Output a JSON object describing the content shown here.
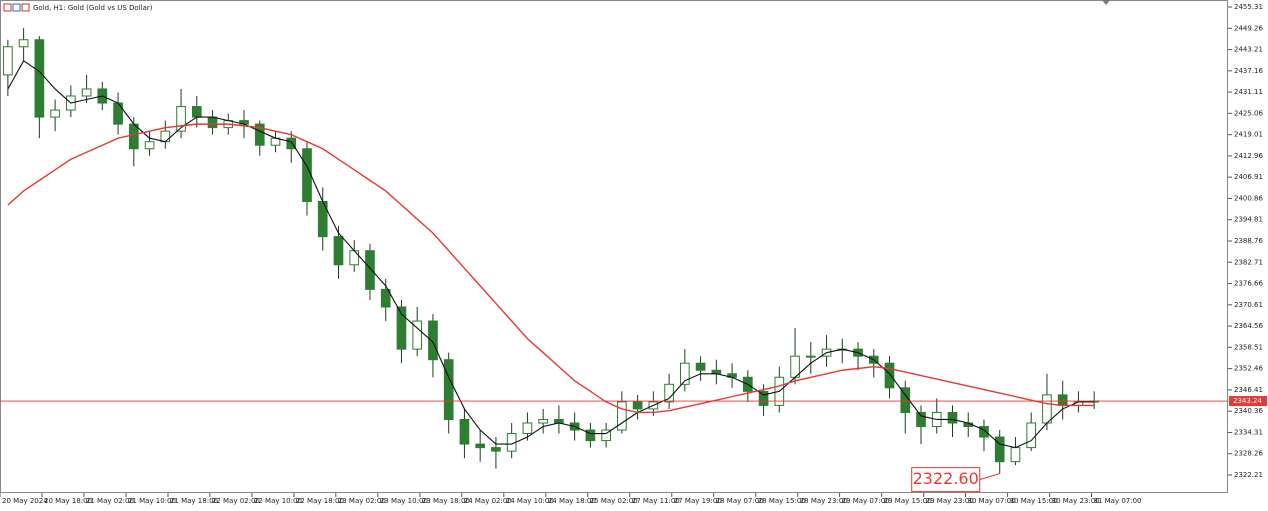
{
  "chart_data": {
    "type": "candlestick",
    "title": "Gold, H1: Gold (Gold vs US Dollar)",
    "xlim": [
      0,
      78
    ],
    "ylim": [
      2317.09,
      2457.3
    ],
    "yticks": [
      2455.31,
      2449.26,
      2443.21,
      2437.16,
      2431.11,
      2425.06,
      2419.01,
      2412.96,
      2406.91,
      2400.86,
      2394.81,
      2388.76,
      2382.71,
      2376.66,
      2370.61,
      2364.56,
      2358.51,
      2352.46,
      2346.41,
      2340.36,
      2334.31,
      2328.26,
      2322.21
    ],
    "xticks": [
      {
        "value": 0,
        "label": "20 May 2024"
      },
      {
        "value": 2.67,
        "label": "20 May 18:00"
      },
      {
        "value": 5.33,
        "label": "21 May 02:00"
      },
      {
        "value": 8,
        "label": "21 May 10:00"
      },
      {
        "value": 10.67,
        "label": "21 May 18:00"
      },
      {
        "value": 13.33,
        "label": "22 May 02:00"
      },
      {
        "value": 16,
        "label": "22 May 10:00"
      },
      {
        "value": 18.67,
        "label": "22 May 18:00"
      },
      {
        "value": 21.33,
        "label": "23 May 02:00"
      },
      {
        "value": 24,
        "label": "23 May 10:00"
      },
      {
        "value": 26.67,
        "label": "23 May 18:00"
      },
      {
        "value": 29.33,
        "label": "24 May 02:00"
      },
      {
        "value": 32,
        "label": "24 May 10:00"
      },
      {
        "value": 34.67,
        "label": "24 May 18:00"
      },
      {
        "value": 37.33,
        "label": "25 May 02:00"
      },
      {
        "value": 40,
        "label": "27 May 11:00"
      },
      {
        "value": 42.67,
        "label": "27 May 19:00"
      },
      {
        "value": 45.33,
        "label": "28 May 07:00"
      },
      {
        "value": 48,
        "label": "28 May 15:00"
      },
      {
        "value": 50.67,
        "label": "28 May 23:00"
      },
      {
        "value": 53.33,
        "label": "29 May 07:00"
      },
      {
        "value": 56,
        "label": "29 May 15:00"
      },
      {
        "value": 58.67,
        "label": "29 May 23:00"
      },
      {
        "value": 61.33,
        "label": "30 May 07:00"
      },
      {
        "value": 64,
        "label": "30 May 15:00"
      },
      {
        "value": 66.67,
        "label": "30 May 23:00"
      },
      {
        "value": 69.33,
        "label": "31 May 07:00"
      }
    ],
    "candle_color": "#2e7d32",
    "wick_color": "#1a3d1c",
    "open": [
      2436,
      2444,
      2446,
      2424,
      2426,
      2430,
      2432,
      2428,
      2422,
      2415,
      2417,
      2420,
      2427,
      2424,
      2421,
      2423,
      2422,
      2416,
      2418,
      2415,
      2400,
      2390,
      2382,
      2386,
      2375,
      2370,
      2358,
      2366,
      2355,
      2338,
      2331,
      2330,
      2329,
      2334,
      2337,
      2338,
      2337,
      2335,
      2332,
      2335,
      2343,
      2341,
      2343,
      2348,
      2354,
      2352,
      2351,
      2350,
      2346,
      2342,
      2350,
      2356,
      2356,
      2358,
      2358,
      2356,
      2354,
      2347,
      2340,
      2336,
      2340,
      2337,
      2336,
      2333,
      2326,
      2330,
      2337,
      2345,
      2342,
      2343
    ],
    "high": [
      2446,
      2449.3,
      2447,
      2429,
      2433,
      2436,
      2434,
      2431,
      2424,
      2420,
      2423,
      2432,
      2430,
      2426,
      2425,
      2426,
      2423,
      2420,
      2420,
      2417,
      2404,
      2393,
      2389,
      2388,
      2378,
      2372,
      2370,
      2368,
      2357,
      2341,
      2335,
      2333,
      2337,
      2340,
      2341,
      2342,
      2340,
      2337,
      2337,
      2346,
      2345,
      2346,
      2351,
      2358,
      2356,
      2355,
      2354,
      2352,
      2348,
      2353,
      2364,
      2360,
      2362,
      2361,
      2360,
      2358,
      2356,
      2349,
      2342,
      2344,
      2342,
      2340,
      2338,
      2335,
      2333,
      2340,
      2351,
      2349,
      2346,
      2346
    ],
    "low": [
      2430,
      2440,
      2418,
      2420,
      2424,
      2428,
      2426,
      2419,
      2410,
      2413,
      2415,
      2418,
      2421,
      2419,
      2419,
      2418,
      2413,
      2414,
      2411,
      2396,
      2386,
      2378,
      2380,
      2372,
      2366,
      2354,
      2356,
      2350,
      2334,
      2327,
      2326,
      2324,
      2327,
      2332,
      2334,
      2334,
      2332,
      2330,
      2330,
      2334,
      2338,
      2339,
      2341,
      2346,
      2349,
      2348,
      2347,
      2343,
      2339,
      2340,
      2348,
      2351,
      2353,
      2354,
      2352,
      2350,
      2344,
      2334,
      2331,
      2334,
      2333,
      2333,
      2329,
      2322.6,
      2325,
      2329,
      2335,
      2338,
      2340,
      2341
    ],
    "close": [
      2444,
      2446,
      2424,
      2426,
      2430,
      2432,
      2428,
      2422,
      2415,
      2417,
      2420,
      2427,
      2424,
      2421,
      2423,
      2422,
      2416,
      2418,
      2415,
      2400,
      2390,
      2382,
      2386,
      2375,
      2370,
      2358,
      2366,
      2355,
      2338,
      2331,
      2330,
      2329,
      2334,
      2337,
      2338,
      2337,
      2335,
      2332,
      2335,
      2343,
      2341,
      2343,
      2348,
      2354,
      2352,
      2351,
      2350,
      2346,
      2342,
      2350,
      2356,
      2356,
      2358,
      2358,
      2356,
      2354,
      2347,
      2340,
      2336,
      2340,
      2337,
      2336,
      2333,
      2326,
      2330,
      2337,
      2345,
      2342,
      2343,
      2343.24
    ],
    "series": [
      {
        "color": "#111111",
        "values": [
          2432,
          2440,
          2437,
          2432,
          2428,
          2429,
          2430,
          2428,
          2422,
          2418,
          2417,
          2421,
          2424,
          2424,
          2423,
          2422,
          2420,
          2418,
          2417,
          2410,
          2400,
          2391,
          2386,
          2381,
          2376,
          2368,
          2364,
          2360,
          2350,
          2341,
          2335,
          2331,
          2331,
          2333,
          2336,
          2337,
          2336,
          2334,
          2334,
          2337,
          2340,
          2342,
          2344,
          2349,
          2351,
          2351,
          2350,
          2348,
          2345,
          2346,
          2350,
          2354,
          2357,
          2358,
          2357,
          2355,
          2351,
          2345,
          2339,
          2338,
          2338,
          2337,
          2335,
          2331,
          2330,
          2332,
          2337,
          2341,
          2343,
          2343
        ]
      },
      {
        "color": "#e53935",
        "values": [
          2399,
          2403,
          2406,
          2409,
          2412,
          2414,
          2416,
          2418,
          2419,
          2420,
          2421,
          2421.5,
          2422,
          2422,
          2422,
          2421.5,
          2421,
          2420,
          2419,
          2417,
          2415,
          2412,
          2409,
          2406,
          2403,
          2399,
          2395,
          2391,
          2386,
          2381,
          2376,
          2371,
          2366,
          2361,
          2357,
          2353,
          2349,
          2346,
          2343,
          2341,
          2340,
          2340,
          2340.5,
          2341.5,
          2342.5,
          2343.5,
          2344.5,
          2345.5,
          2346.5,
          2347.5,
          2349,
          2350,
          2351,
          2352,
          2352.5,
          2353,
          2352.5,
          2351.5,
          2350.5,
          2349.5,
          2348.5,
          2347.5,
          2346.5,
          2345.5,
          2344.5,
          2343.5,
          2342.5,
          2342,
          2342,
          2342
        ]
      }
    ],
    "price_line": {
      "value": 2343.24,
      "label": "2343.24",
      "color": "#e53935"
    },
    "low_annotation": {
      "index": 63,
      "value": 2322.6,
      "label": "2322.60",
      "color": "#e53935"
    },
    "grid": false
  }
}
